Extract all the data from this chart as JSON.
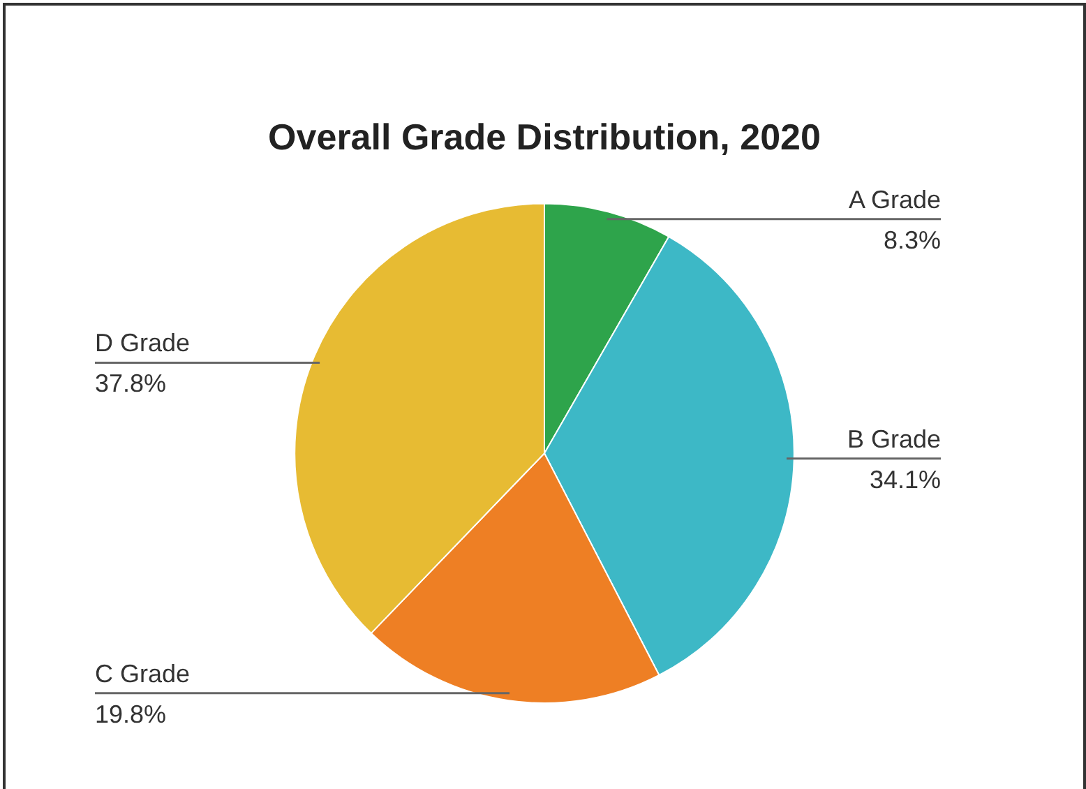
{
  "chart_data": {
    "type": "pie",
    "title": "Overall Grade Distribution, 2020",
    "categories": [
      "A Grade",
      "B Grade",
      "C Grade",
      "D Grade"
    ],
    "values": [
      8.3,
      34.1,
      19.8,
      37.8
    ],
    "value_labels": [
      "8.3%",
      "34.1%",
      "19.8%",
      "37.8%"
    ],
    "colors": [
      "#2ea44b",
      "#3db8c6",
      "#ee7f24",
      "#e7bb33"
    ],
    "legend": false
  }
}
